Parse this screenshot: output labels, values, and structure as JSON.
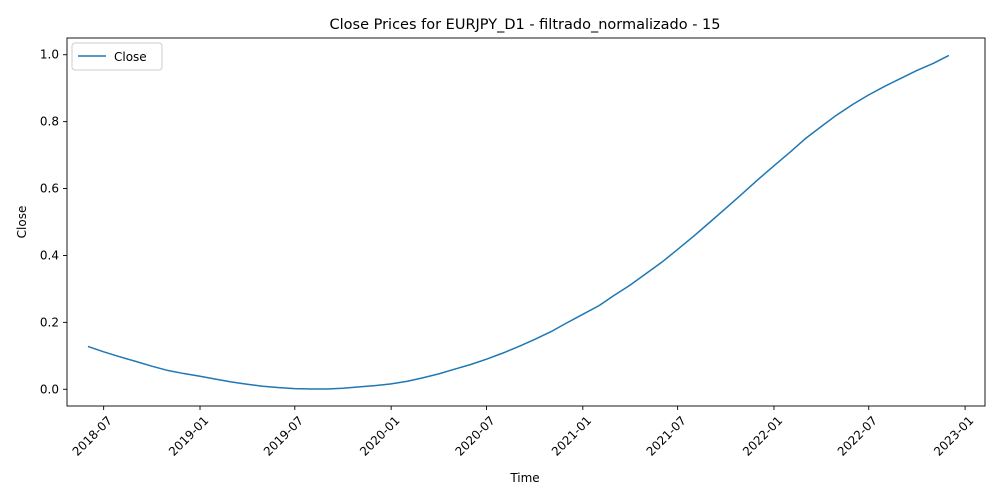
{
  "chart_data": {
    "type": "line",
    "title": "Close Prices for EURJPY_D1 - filtrado_normalizado - 15",
    "xlabel": "Time",
    "ylabel": "Close",
    "x_tick_labels": [
      "2018-07",
      "2019-01",
      "2019-07",
      "2020-01",
      "2020-07",
      "2021-01",
      "2021-07",
      "2022-01",
      "2022-07",
      "2023-01"
    ],
    "x_tick_dates": [
      "2018-07-01",
      "2019-01-01",
      "2019-07-01",
      "2020-01-01",
      "2020-07-01",
      "2021-01-01",
      "2021-07-01",
      "2022-01-01",
      "2022-07-01",
      "2023-01-01"
    ],
    "y_tick_labels": [
      "0.0",
      "0.2",
      "0.4",
      "0.6",
      "0.8",
      "1.0"
    ],
    "y_tick_values": [
      0.0,
      0.2,
      0.4,
      0.6,
      0.8,
      1.0
    ],
    "xlim": [
      "2018-04-22",
      "2023-02-08"
    ],
    "ylim": [
      -0.05,
      1.05
    ],
    "grid": false,
    "legend_position": "top-left",
    "series": [
      {
        "name": "Close",
        "color": "#1f77b4",
        "x": [
          "2018-06-01",
          "2018-07-01",
          "2018-08-01",
          "2018-09-01",
          "2018-10-01",
          "2018-11-01",
          "2018-12-01",
          "2019-01-01",
          "2019-02-01",
          "2019-03-01",
          "2019-04-01",
          "2019-05-01",
          "2019-06-01",
          "2019-07-01",
          "2019-08-01",
          "2019-09-01",
          "2019-10-01",
          "2019-11-01",
          "2019-12-01",
          "2020-01-01",
          "2020-02-01",
          "2020-03-01",
          "2020-04-01",
          "2020-05-01",
          "2020-06-01",
          "2020-07-01",
          "2020-08-01",
          "2020-09-01",
          "2020-10-01",
          "2020-11-01",
          "2020-12-01",
          "2021-01-01",
          "2021-02-01",
          "2021-03-01",
          "2021-04-01",
          "2021-05-01",
          "2021-06-01",
          "2021-07-01",
          "2021-08-01",
          "2021-09-01",
          "2021-10-01",
          "2021-11-01",
          "2021-12-01",
          "2022-01-01",
          "2022-02-01",
          "2022-03-01",
          "2022-04-01",
          "2022-05-01",
          "2022-06-01",
          "2022-07-01",
          "2022-08-01",
          "2022-09-01",
          "2022-10-01",
          "2022-11-01",
          "2022-12-01"
        ],
        "values": [
          0.128,
          0.112,
          0.097,
          0.083,
          0.069,
          0.056,
          0.047,
          0.039,
          0.03,
          0.022,
          0.015,
          0.009,
          0.005,
          0.002,
          0.001,
          0.001,
          0.003,
          0.007,
          0.011,
          0.016,
          0.024,
          0.034,
          0.046,
          0.06,
          0.074,
          0.09,
          0.108,
          0.128,
          0.149,
          0.172,
          0.198,
          0.224,
          0.25,
          0.28,
          0.311,
          0.345,
          0.38,
          0.418,
          0.458,
          0.5,
          0.541,
          0.584,
          0.626,
          0.668,
          0.709,
          0.748,
          0.785,
          0.82,
          0.852,
          0.88,
          0.906,
          0.93,
          0.953,
          0.974,
          0.998
        ]
      }
    ]
  }
}
